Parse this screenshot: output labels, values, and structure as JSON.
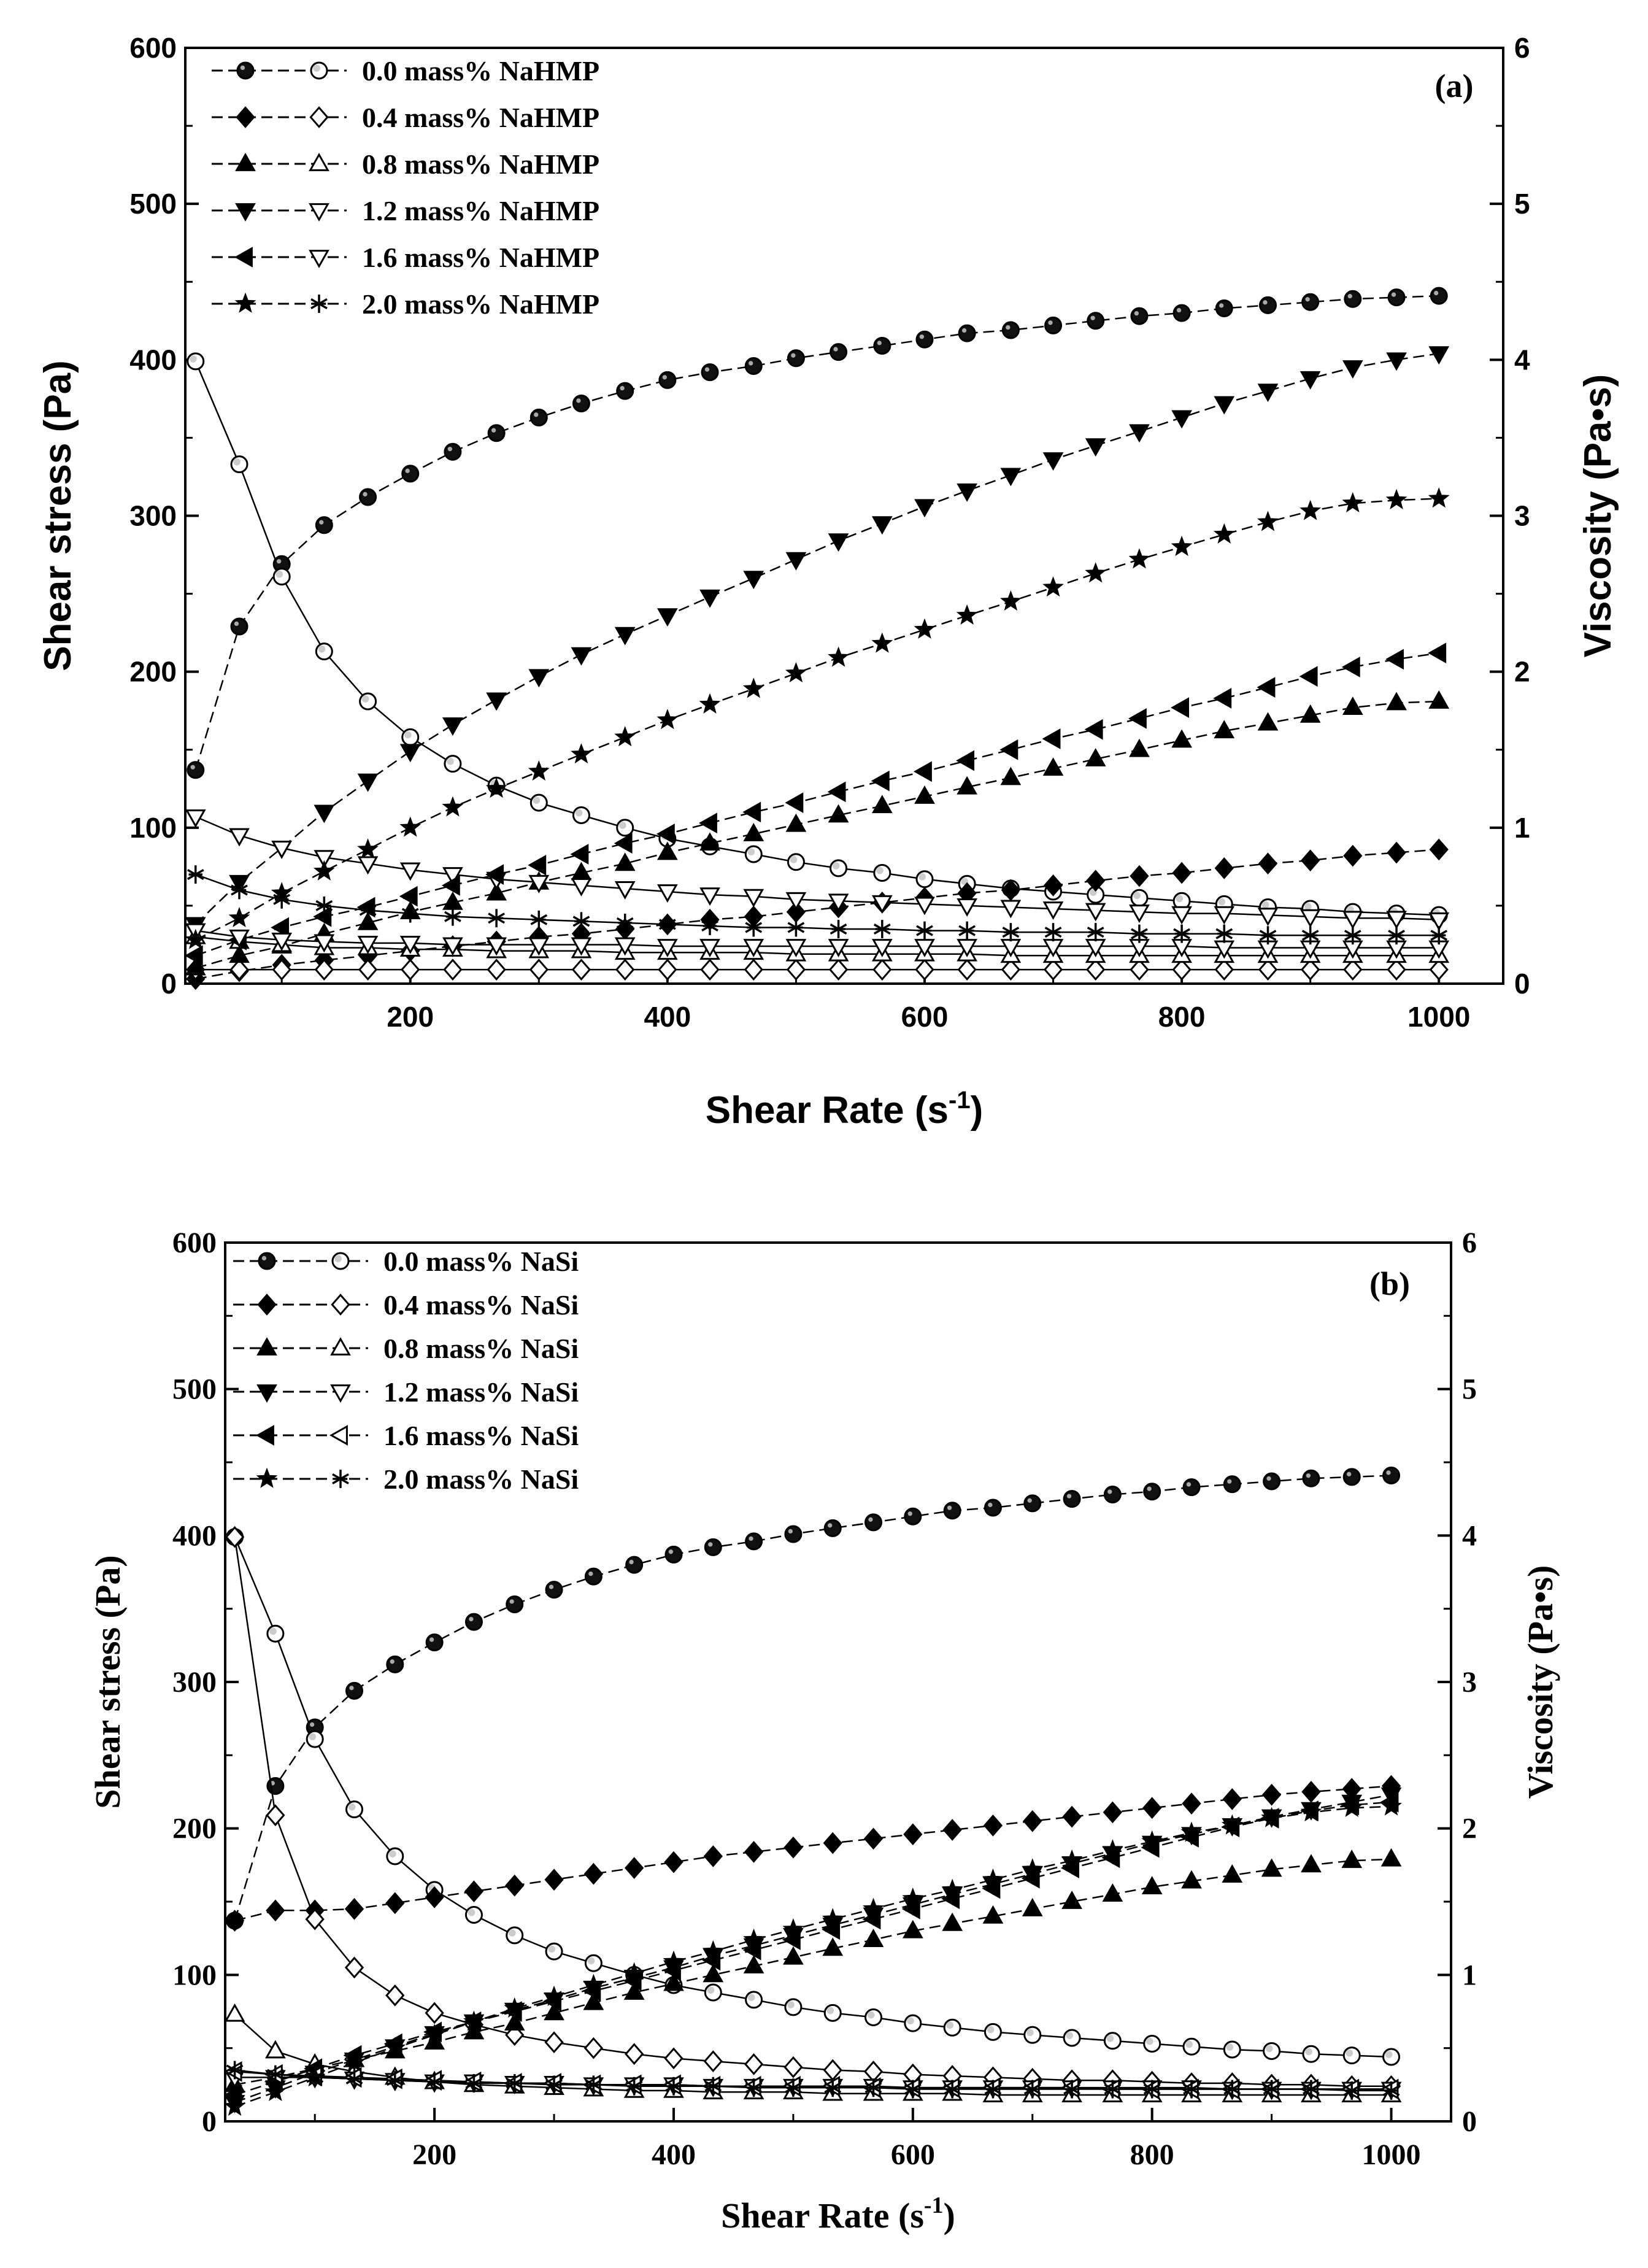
{
  "chart_data": [
    {
      "type": "line",
      "panel": "(a)",
      "xlabel": "Shear Rate (s",
      "xlabel_sup": "-1",
      "xlabel_close": ")",
      "ylabel_left": "Shear stress (Pa)",
      "ylabel_right": "Viscosity (Pa•s)",
      "xlim": [
        25,
        1050
      ],
      "ylim_left": [
        0,
        600
      ],
      "ylim_right": [
        0,
        6
      ],
      "xticks": [
        200,
        400,
        600,
        800,
        1000
      ],
      "yticks_left": [
        0,
        100,
        200,
        300,
        400,
        500,
        600
      ],
      "yticks_right": [
        0,
        1,
        2,
        3,
        4,
        5,
        6
      ],
      "x": [
        33,
        67,
        100,
        133,
        167,
        200,
        233,
        267,
        300,
        333,
        367,
        400,
        433,
        467,
        500,
        533,
        567,
        600,
        633,
        667,
        700,
        733,
        767,
        800,
        833,
        867,
        900,
        933,
        967,
        1000
      ],
      "series": [
        {
          "name": "0.0 mass% NaHMP",
          "stress_marker": "circle-filled",
          "viscosity_marker": "circle-open",
          "stress": [
            137,
            229,
            269,
            294,
            312,
            327,
            341,
            353,
            363,
            372,
            380,
            387,
            392,
            396,
            401,
            405,
            409,
            413,
            417,
            419,
            422,
            425,
            428,
            430,
            433,
            435,
            437,
            439,
            440,
            441
          ],
          "viscosity": [
            3.99,
            3.33,
            2.61,
            2.13,
            1.81,
            1.58,
            1.41,
            1.27,
            1.16,
            1.08,
            1.0,
            0.93,
            0.88,
            0.83,
            0.78,
            0.74,
            0.71,
            0.67,
            0.64,
            0.61,
            0.59,
            0.57,
            0.55,
            0.53,
            0.51,
            0.49,
            0.48,
            0.46,
            0.45,
            0.44
          ]
        },
        {
          "name": "0.4 mass% NaHMP",
          "stress_marker": "diamond-filled",
          "viscosity_marker": "diamond-open",
          "stress": [
            3,
            8,
            12,
            15,
            18,
            21,
            24,
            27,
            30,
            32,
            35,
            38,
            41,
            43,
            46,
            49,
            52,
            55,
            58,
            60,
            63,
            66,
            69,
            71,
            74,
            77,
            79,
            82,
            84,
            86
          ],
          "viscosity": [
            0.09,
            0.09,
            0.09,
            0.09,
            0.09,
            0.09,
            0.09,
            0.09,
            0.09,
            0.09,
            0.09,
            0.09,
            0.09,
            0.09,
            0.09,
            0.09,
            0.09,
            0.09,
            0.09,
            0.09,
            0.09,
            0.09,
            0.09,
            0.09,
            0.09,
            0.09,
            0.09,
            0.09,
            0.09,
            0.09
          ]
        },
        {
          "name": "0.8 mass% NaHMP",
          "stress_marker": "triangle-up-filled",
          "viscosity_marker": "triangle-up-open",
          "stress": [
            10,
            18,
            24,
            32,
            39,
            46,
            52,
            58,
            65,
            71,
            77,
            84,
            90,
            96,
            102,
            108,
            114,
            120,
            126,
            132,
            138,
            144,
            150,
            156,
            162,
            167,
            172,
            177,
            180,
            181
          ],
          "viscosity": [
            0.3,
            0.27,
            0.25,
            0.23,
            0.23,
            0.22,
            0.22,
            0.21,
            0.21,
            0.21,
            0.2,
            0.2,
            0.2,
            0.2,
            0.19,
            0.19,
            0.19,
            0.19,
            0.19,
            0.18,
            0.18,
            0.18,
            0.18,
            0.18,
            0.18,
            0.18,
            0.18,
            0.18,
            0.18,
            0.18
          ]
        },
        {
          "name": "1.2 mass% NaHMP",
          "stress_marker": "triangle-down-filled",
          "viscosity_marker": "triangle-down-open",
          "stress": [
            38,
            65,
            87,
            110,
            130,
            149,
            166,
            182,
            197,
            211,
            224,
            236,
            248,
            260,
            272,
            284,
            295,
            306,
            316,
            326,
            336,
            345,
            354,
            363,
            372,
            380,
            388,
            395,
            400,
            404
          ],
          "viscosity": [
            1.07,
            0.95,
            0.87,
            0.81,
            0.77,
            0.73,
            0.7,
            0.67,
            0.65,
            0.63,
            0.61,
            0.59,
            0.57,
            0.56,
            0.54,
            0.53,
            0.52,
            0.51,
            0.5,
            0.49,
            0.48,
            0.47,
            0.46,
            0.45,
            0.45,
            0.44,
            0.43,
            0.42,
            0.42,
            0.41
          ]
        },
        {
          "name": "1.6 mass% NaHMP",
          "stress_marker": "triangle-left-filled",
          "viscosity_marker": "triangle-down-open",
          "stress": [
            18,
            28,
            36,
            43,
            49,
            56,
            63,
            70,
            76,
            83,
            90,
            96,
            103,
            110,
            116,
            123,
            130,
            136,
            143,
            150,
            157,
            163,
            170,
            177,
            183,
            190,
            197,
            203,
            208,
            212
          ],
          "viscosity": [
            0.34,
            0.3,
            0.28,
            0.27,
            0.26,
            0.26,
            0.25,
            0.25,
            0.25,
            0.25,
            0.25,
            0.24,
            0.24,
            0.24,
            0.24,
            0.24,
            0.24,
            0.24,
            0.24,
            0.24,
            0.24,
            0.24,
            0.24,
            0.24,
            0.23,
            0.23,
            0.23,
            0.23,
            0.23,
            0.23
          ]
        },
        {
          "name": "2.0 mass% NaHMP",
          "stress_marker": "star-filled",
          "viscosity_marker": "asterisk",
          "stress": [
            28,
            42,
            58,
            72,
            86,
            100,
            113,
            125,
            136,
            147,
            158,
            169,
            179,
            189,
            199,
            209,
            218,
            227,
            236,
            245,
            254,
            263,
            272,
            280,
            288,
            296,
            303,
            308,
            310,
            311
          ],
          "viscosity": [
            0.7,
            0.6,
            0.54,
            0.5,
            0.47,
            0.45,
            0.43,
            0.42,
            0.41,
            0.4,
            0.39,
            0.38,
            0.37,
            0.36,
            0.36,
            0.35,
            0.35,
            0.34,
            0.34,
            0.33,
            0.33,
            0.33,
            0.32,
            0.32,
            0.32,
            0.31,
            0.31,
            0.31,
            0.31,
            0.31
          ]
        }
      ]
    },
    {
      "type": "line",
      "panel": "(b)",
      "xlabel": "Shear Rate (s",
      "xlabel_sup": "-1",
      "xlabel_close": ")",
      "ylabel_left": "Shear stress (Pa)",
      "ylabel_right": "Viscosity (Pa•s)",
      "xlim": [
        25,
        1050
      ],
      "ylim_left": [
        0,
        600
      ],
      "ylim_right": [
        0,
        6
      ],
      "xticks": [
        200,
        400,
        600,
        800,
        1000
      ],
      "yticks_left": [
        0,
        100,
        200,
        300,
        400,
        500,
        600
      ],
      "yticks_right": [
        0,
        1,
        2,
        3,
        4,
        5,
        6
      ],
      "x": [
        33,
        67,
        100,
        133,
        167,
        200,
        233,
        267,
        300,
        333,
        367,
        400,
        433,
        467,
        500,
        533,
        567,
        600,
        633,
        667,
        700,
        733,
        767,
        800,
        833,
        867,
        900,
        933,
        967,
        1000
      ],
      "series": [
        {
          "name": "0.0 mass%  NaSi",
          "stress_marker": "circle-filled",
          "viscosity_marker": "circle-open",
          "stress": [
            137,
            229,
            269,
            294,
            312,
            327,
            341,
            353,
            363,
            372,
            380,
            387,
            392,
            396,
            401,
            405,
            409,
            413,
            417,
            419,
            422,
            425,
            428,
            430,
            433,
            435,
            437,
            439,
            440,
            441
          ],
          "viscosity": [
            3.99,
            3.33,
            2.61,
            2.13,
            1.81,
            1.58,
            1.41,
            1.27,
            1.16,
            1.08,
            1.0,
            0.93,
            0.88,
            0.83,
            0.78,
            0.74,
            0.71,
            0.67,
            0.64,
            0.61,
            0.59,
            0.57,
            0.55,
            0.53,
            0.51,
            0.49,
            0.48,
            0.46,
            0.45,
            0.44
          ]
        },
        {
          "name": "0.4 mass%  NaSi",
          "stress_marker": "diamond-filled",
          "viscosity_marker": "diamond-open",
          "stress": [
            137,
            144,
            144,
            145,
            149,
            153,
            157,
            161,
            165,
            169,
            173,
            177,
            181,
            184,
            187,
            190,
            193,
            196,
            199,
            202,
            205,
            208,
            211,
            214,
            217,
            220,
            223,
            225,
            227,
            229
          ],
          "viscosity": [
            3.99,
            2.09,
            1.38,
            1.05,
            0.86,
            0.74,
            0.66,
            0.59,
            0.54,
            0.5,
            0.46,
            0.43,
            0.41,
            0.39,
            0.37,
            0.35,
            0.34,
            0.32,
            0.31,
            0.3,
            0.29,
            0.28,
            0.28,
            0.27,
            0.26,
            0.26,
            0.25,
            0.25,
            0.24,
            0.24
          ]
        },
        {
          "name": "0.8 mass%  NaSi",
          "stress_marker": "triangle-up-filled",
          "viscosity_marker": "triangle-up-open",
          "stress": [
            25,
            30,
            36,
            42,
            48,
            54,
            61,
            67,
            74,
            81,
            88,
            94,
            100,
            106,
            112,
            118,
            124,
            130,
            135,
            140,
            145,
            150,
            155,
            160,
            164,
            168,
            172,
            175,
            178,
            179
          ],
          "viscosity": [
            0.73,
            0.48,
            0.39,
            0.34,
            0.3,
            0.27,
            0.25,
            0.24,
            0.23,
            0.22,
            0.21,
            0.21,
            0.2,
            0.2,
            0.2,
            0.19,
            0.19,
            0.19,
            0.19,
            0.18,
            0.18,
            0.18,
            0.18,
            0.18,
            0.18,
            0.18,
            0.18,
            0.18,
            0.18,
            0.18
          ]
        },
        {
          "name": "1.2 mass%  NaSi",
          "stress_marker": "triangle-down-filled",
          "viscosity_marker": "triangle-down-open",
          "stress": [
            13,
            23,
            33,
            42,
            51,
            60,
            68,
            76,
            83,
            91,
            98,
            105,
            113,
            120,
            127,
            134,
            141,
            148,
            155,
            162,
            169,
            176,
            183,
            190,
            196,
            202,
            208,
            213,
            218,
            223
          ],
          "viscosity": [
            0.3,
            0.3,
            0.3,
            0.29,
            0.28,
            0.27,
            0.27,
            0.26,
            0.26,
            0.25,
            0.25,
            0.25,
            0.24,
            0.24,
            0.24,
            0.24,
            0.24,
            0.23,
            0.23,
            0.23,
            0.23,
            0.23,
            0.23,
            0.23,
            0.23,
            0.22,
            0.22,
            0.22,
            0.22,
            0.22
          ]
        },
        {
          "name": "1.6 mass%  NaSi",
          "stress_marker": "triangle-left-filled",
          "viscosity_marker": "triangle-left-open",
          "stress": [
            18,
            27,
            36,
            45,
            53,
            61,
            68,
            75,
            82,
            89,
            96,
            103,
            110,
            117,
            124,
            131,
            138,
            145,
            152,
            159,
            166,
            173,
            180,
            187,
            194,
            201,
            207,
            212,
            216,
            218
          ],
          "viscosity": [
            0.34,
            0.32,
            0.31,
            0.3,
            0.29,
            0.28,
            0.27,
            0.26,
            0.26,
            0.25,
            0.25,
            0.25,
            0.24,
            0.24,
            0.24,
            0.24,
            0.23,
            0.23,
            0.23,
            0.23,
            0.23,
            0.23,
            0.22,
            0.22,
            0.22,
            0.22,
            0.22,
            0.22,
            0.22,
            0.22
          ]
        },
        {
          "name": "2.0 mass%  NaSi",
          "stress_marker": "star-filled",
          "viscosity_marker": "asterisk",
          "stress": [
            10,
            20,
            30,
            40,
            50,
            59,
            68,
            77,
            85,
            93,
            101,
            109,
            116,
            124,
            131,
            138,
            145,
            152,
            158,
            165,
            172,
            178,
            185,
            191,
            197,
            202,
            207,
            211,
            214,
            215
          ],
          "viscosity": [
            0.35,
            0.32,
            0.3,
            0.29,
            0.28,
            0.27,
            0.26,
            0.26,
            0.25,
            0.25,
            0.24,
            0.24,
            0.24,
            0.23,
            0.23,
            0.23,
            0.23,
            0.22,
            0.22,
            0.22,
            0.22,
            0.22,
            0.22,
            0.22,
            0.22,
            0.22,
            0.22,
            0.22,
            0.21,
            0.21
          ]
        }
      ]
    }
  ]
}
